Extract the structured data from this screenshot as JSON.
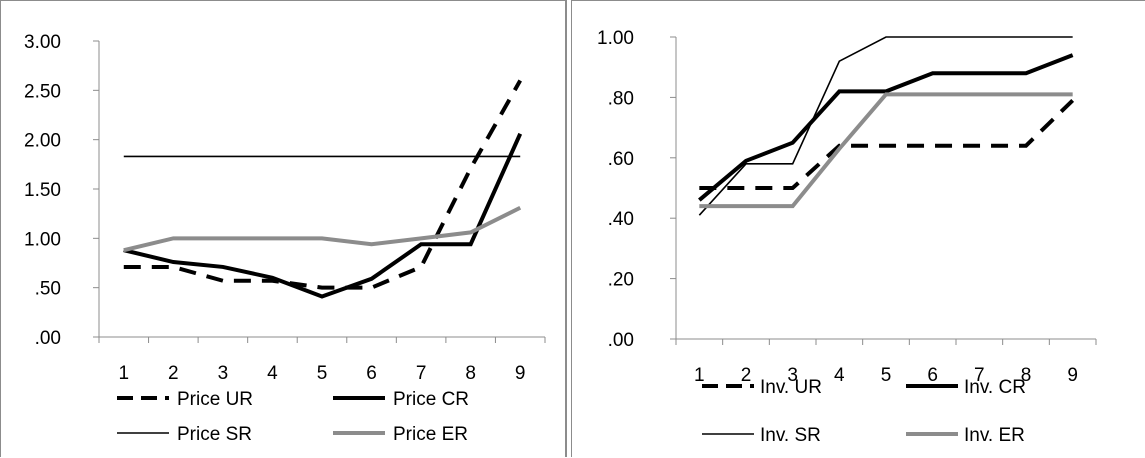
{
  "chart_data": [
    {
      "type": "line",
      "categories": [
        "1",
        "2",
        "3",
        "4",
        "5",
        "6",
        "7",
        "8",
        "9"
      ],
      "ylim": [
        0,
        3
      ],
      "yticks": [
        0,
        0.5,
        1,
        1.5,
        2,
        2.5,
        3
      ],
      "ytick_labels": [
        ".00",
        ".50",
        "1.00",
        "1.50",
        "2.00",
        "2.50",
        "3.00"
      ],
      "grid": false,
      "legend_position": "bottom",
      "series": [
        {
          "name": "Price UR",
          "values": [
            0.71,
            0.71,
            0.57,
            0.57,
            0.5,
            0.5,
            0.71,
            1.71,
            2.6
          ],
          "style": "dashed-thick",
          "color": "#000000"
        },
        {
          "name": "Price CR",
          "values": [
            0.88,
            0.76,
            0.71,
            0.6,
            0.41,
            0.59,
            0.94,
            0.94,
            2.06
          ],
          "style": "solid-thick",
          "color": "#000000"
        },
        {
          "name": "Price SR",
          "values": [
            1.83,
            1.83,
            1.83,
            1.83,
            1.83,
            1.83,
            1.83,
            1.83,
            1.83
          ],
          "style": "solid-thin",
          "color": "#000000"
        },
        {
          "name": "Price ER",
          "values": [
            0.88,
            1.0,
            1.0,
            1.0,
            1.0,
            0.94,
            1.0,
            1.06,
            1.31
          ],
          "style": "solid-thick",
          "color": "#8c8c8c"
        }
      ]
    },
    {
      "type": "line",
      "categories": [
        "1",
        "2",
        "3",
        "4",
        "5",
        "6",
        "7",
        "8",
        "9"
      ],
      "ylim": [
        0,
        1
      ],
      "yticks": [
        0,
        0.2,
        0.4,
        0.6,
        0.8,
        1.0
      ],
      "ytick_labels": [
        ".00",
        ".20",
        ".40",
        ".60",
        ".80",
        "1.00"
      ],
      "grid": false,
      "legend_position": "bottom",
      "series": [
        {
          "name": "Inv. UR",
          "values": [
            0.5,
            0.5,
            0.5,
            0.64,
            0.64,
            0.64,
            0.64,
            0.64,
            0.79
          ],
          "style": "dashed-thick",
          "color": "#000000"
        },
        {
          "name": "Inv. CR",
          "values": [
            0.46,
            0.59,
            0.65,
            0.82,
            0.82,
            0.88,
            0.88,
            0.88,
            0.94
          ],
          "style": "solid-thick",
          "color": "#000000"
        },
        {
          "name": "Inv. SR",
          "values": [
            0.41,
            0.58,
            0.58,
            0.92,
            1.0,
            1.0,
            1.0,
            1.0,
            1.0
          ],
          "style": "solid-thin",
          "color": "#000000"
        },
        {
          "name": "Inv. ER",
          "values": [
            0.44,
            0.44,
            0.44,
            0.63,
            0.81,
            0.81,
            0.81,
            0.81,
            0.81
          ],
          "style": "solid-thick",
          "color": "#8c8c8c"
        }
      ]
    }
  ]
}
